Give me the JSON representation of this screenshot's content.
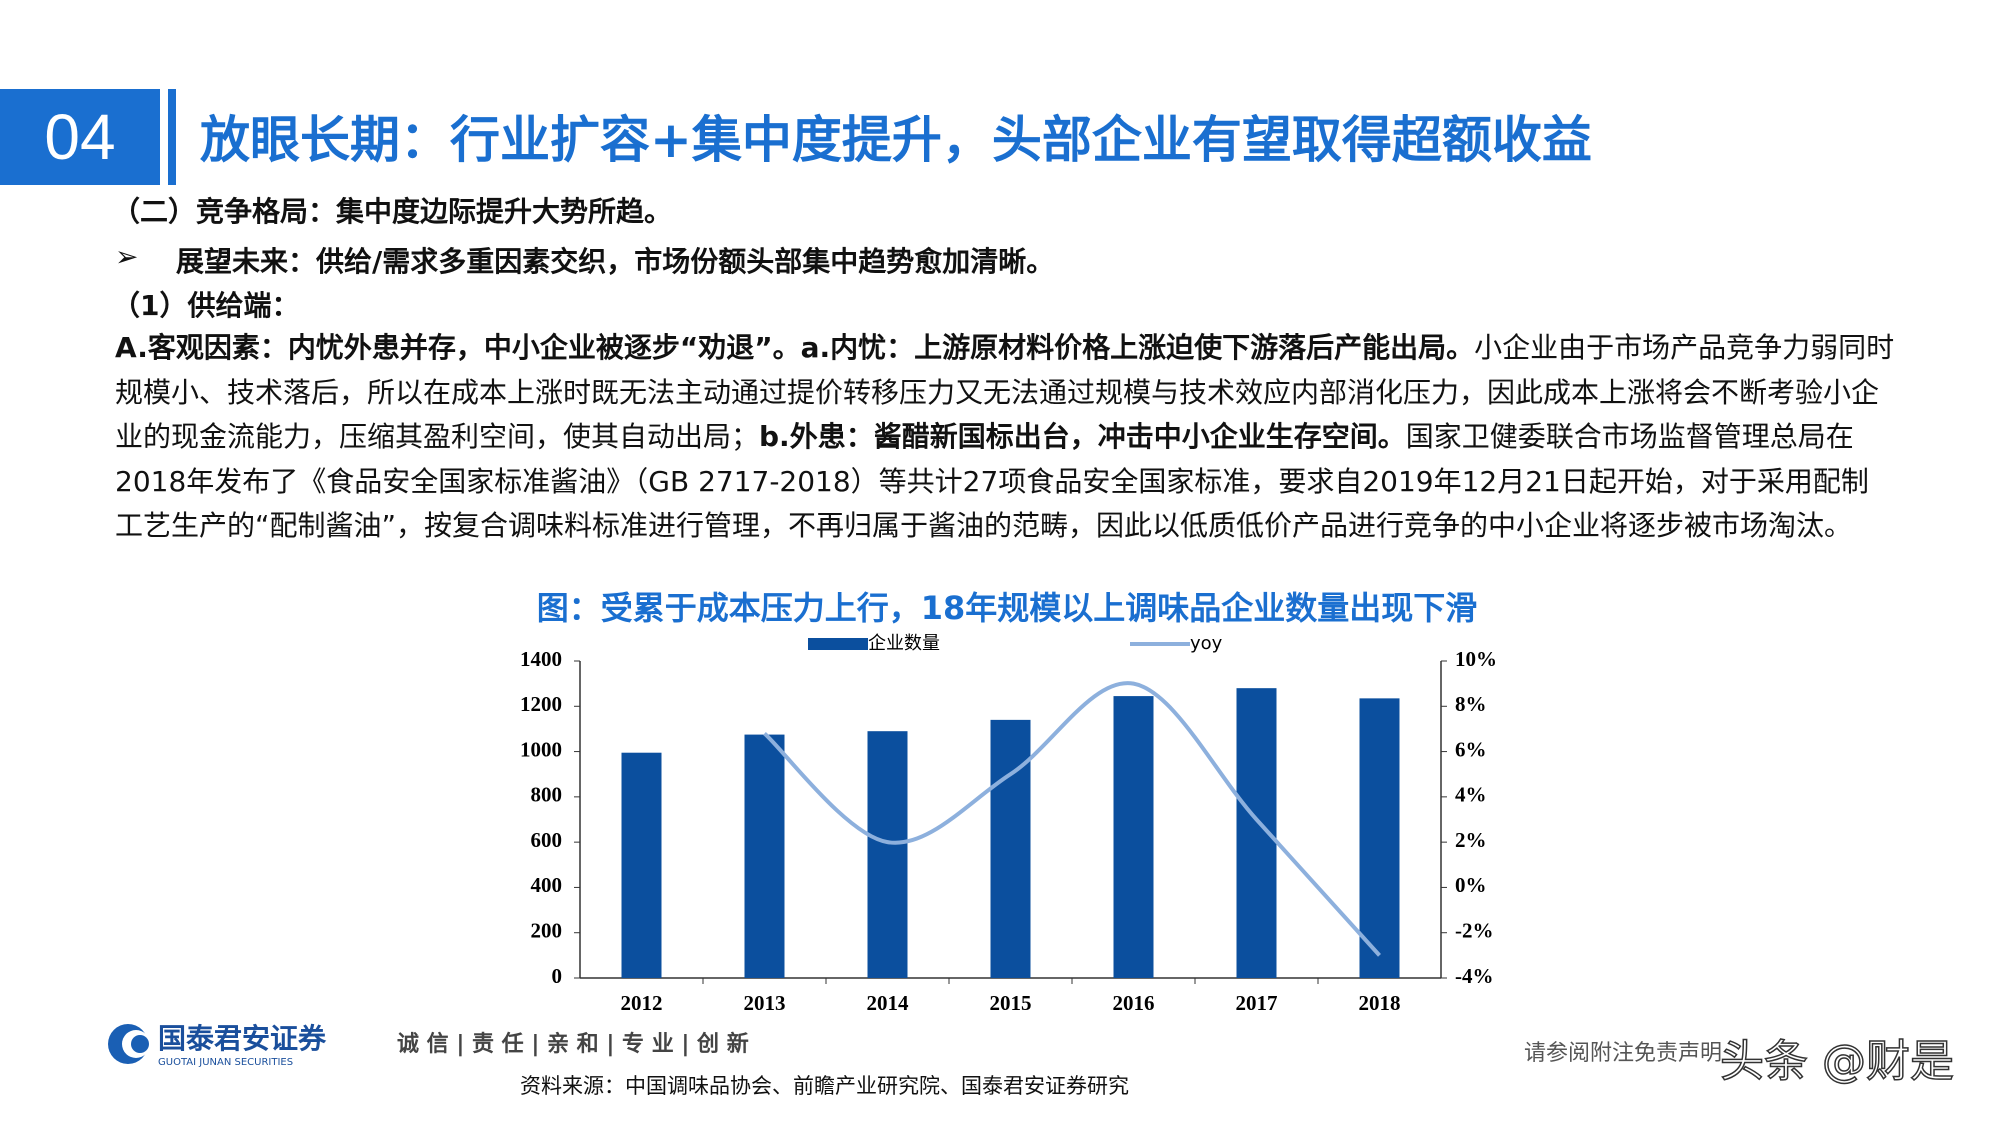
{
  "header": {
    "number": "04",
    "title": "放眼长期：行业扩容+集中度提升，头部企业有望取得超额收益"
  },
  "body": {
    "section": "（二）竞争格局：集中度边际提升大势所趋。",
    "bullet_marker": "➢",
    "bullet": "展望未来：供给/需求多重因素交织，市场份额头部集中趋势愈加清晰。",
    "subsection": "（1）供给端：",
    "paragraph": [
      {
        "text": "A.客观因素：内忧外患并存，中小企业被逐步“劝退”。a.内忧：上游原材料价格上涨迫使下游落后产能出局。",
        "bold": true
      },
      {
        "text": "小企业由于市场产品竞争力弱同时规模小、技术落后，所以在成本上涨时既无法主动通过提价转移压力又无法通过规模与技术效应内部消化压力，因此成本上涨将会不断考验小企业的现金流能力，压缩其盈利空间，使其自动出局；",
        "bold": false
      },
      {
        "text": "b.外患：酱醋新国标出台，冲击中小企业生存空间。",
        "bold": true
      },
      {
        "text": "国家卫健委联合市场监督管理总局在2018年发布了《食品安全国家标准酱油》（GB 2717-2018）等共计27项食品安全国家标准，要求自2019年12月21日起开始，对于采用配制工艺生产的“配制酱油”，按复合调味料标准进行管理，不再归属于酱油的范畴，因此以低质低价产品进行竞争的中小企业将逐步被市场淘汰。",
        "bold": false
      }
    ]
  },
  "chart_data": {
    "type": "bar_line",
    "title": "图：受累于成本压力上行，18年规模以上调味品企业数量出现下滑",
    "categories": [
      "2012",
      "2013",
      "2014",
      "2015",
      "2016",
      "2017",
      "2018"
    ],
    "series": [
      {
        "name": "企业数量",
        "type": "bar",
        "color": "#0b4f9e",
        "values": [
          995,
          1075,
          1090,
          1140,
          1245,
          1280,
          1235
        ]
      },
      {
        "name": "yoy",
        "type": "line",
        "color": "#8db0dd",
        "axis": "y2",
        "values": [
          null,
          6.8,
          2.0,
          5.0,
          9.0,
          3.0,
          -3.0
        ]
      }
    ],
    "ylim": [
      0,
      1400
    ],
    "yticks": [
      0,
      200,
      400,
      600,
      800,
      1000,
      1200,
      1400
    ],
    "y2lim": [
      -4,
      10
    ],
    "y2ticks": [
      {
        "value": -4,
        "label": "-4%"
      },
      {
        "value": -2,
        "label": "-2%"
      },
      {
        "value": 0,
        "label": "0%"
      },
      {
        "value": 2,
        "label": "2%"
      },
      {
        "value": 4,
        "label": "4%"
      },
      {
        "value": 6,
        "label": "6%"
      },
      {
        "value": 8,
        "label": "8%"
      },
      {
        "value": 10,
        "label": "10%"
      }
    ],
    "legend": "top"
  },
  "footer": {
    "company": "国泰君安证券",
    "company_en": "GUOTAI JUNAN SECURITIES",
    "slogan": "诚 信 | 责 任 | 亲 和 | 专 业 | 创 新",
    "source": "资料来源：中国调味品协会、前瞻产业研究院、国泰君安证券研究",
    "disclaimer": "请参阅附注免责声明",
    "watermark": "头条 @财是"
  }
}
